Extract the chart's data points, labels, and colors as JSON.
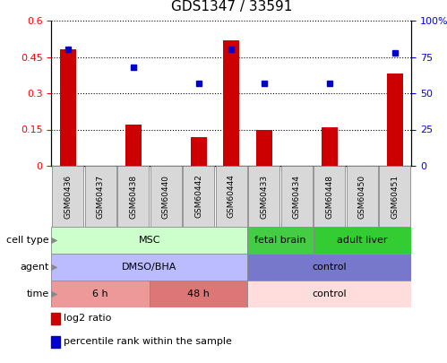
{
  "title": "GDS1347 / 33591",
  "samples": [
    "GSM60436",
    "GSM60437",
    "GSM60438",
    "GSM60440",
    "GSM60442",
    "GSM60444",
    "GSM60433",
    "GSM60434",
    "GSM60448",
    "GSM60450",
    "GSM60451"
  ],
  "log2_ratio": [
    0.48,
    0.0,
    0.17,
    0.0,
    0.12,
    0.52,
    0.15,
    0.0,
    0.16,
    0.0,
    0.38
  ],
  "percentile_rank": [
    80,
    0,
    68,
    0,
    57,
    80,
    57,
    0,
    57,
    0,
    78
  ],
  "ylim_left": [
    0,
    0.6
  ],
  "ylim_right": [
    0,
    100
  ],
  "yticks_left": [
    0,
    0.15,
    0.3,
    0.45,
    0.6
  ],
  "ytick_labels_left": [
    "0",
    "0.15",
    "0.3",
    "0.45",
    "0.6"
  ],
  "yticks_right": [
    0,
    25,
    50,
    75,
    100
  ],
  "ytick_labels_right": [
    "0",
    "25",
    "50",
    "75",
    "100%"
  ],
  "bar_color": "#cc0000",
  "dot_color": "#0000cc",
  "bar_width": 0.5,
  "dot_size": 5,
  "cell_type_groups": [
    {
      "label": "MSC",
      "start": 0,
      "end": 6,
      "color": "#ccffcc"
    },
    {
      "label": "fetal brain",
      "start": 6,
      "end": 8,
      "color": "#44cc44"
    },
    {
      "label": "adult liver",
      "start": 8,
      "end": 11,
      "color": "#33cc33"
    }
  ],
  "agent_groups": [
    {
      "label": "DMSO/BHA",
      "start": 0,
      "end": 6,
      "color": "#bbbbff"
    },
    {
      "label": "control",
      "start": 6,
      "end": 11,
      "color": "#7777cc"
    }
  ],
  "time_groups": [
    {
      "label": "6 h",
      "start": 0,
      "end": 3,
      "color": "#ee9999"
    },
    {
      "label": "48 h",
      "start": 3,
      "end": 6,
      "color": "#dd7777"
    },
    {
      "label": "control",
      "start": 6,
      "end": 11,
      "color": "#ffdddd"
    }
  ],
  "row_labels": [
    "cell type",
    "agent",
    "time"
  ],
  "legend_items": [
    {
      "color": "#cc0000",
      "label": "log2 ratio"
    },
    {
      "color": "#0000cc",
      "label": "percentile rank within the sample"
    }
  ],
  "title_fontsize": 11,
  "tick_fontsize": 8,
  "label_fontsize": 8,
  "sample_fontsize": 6.5
}
